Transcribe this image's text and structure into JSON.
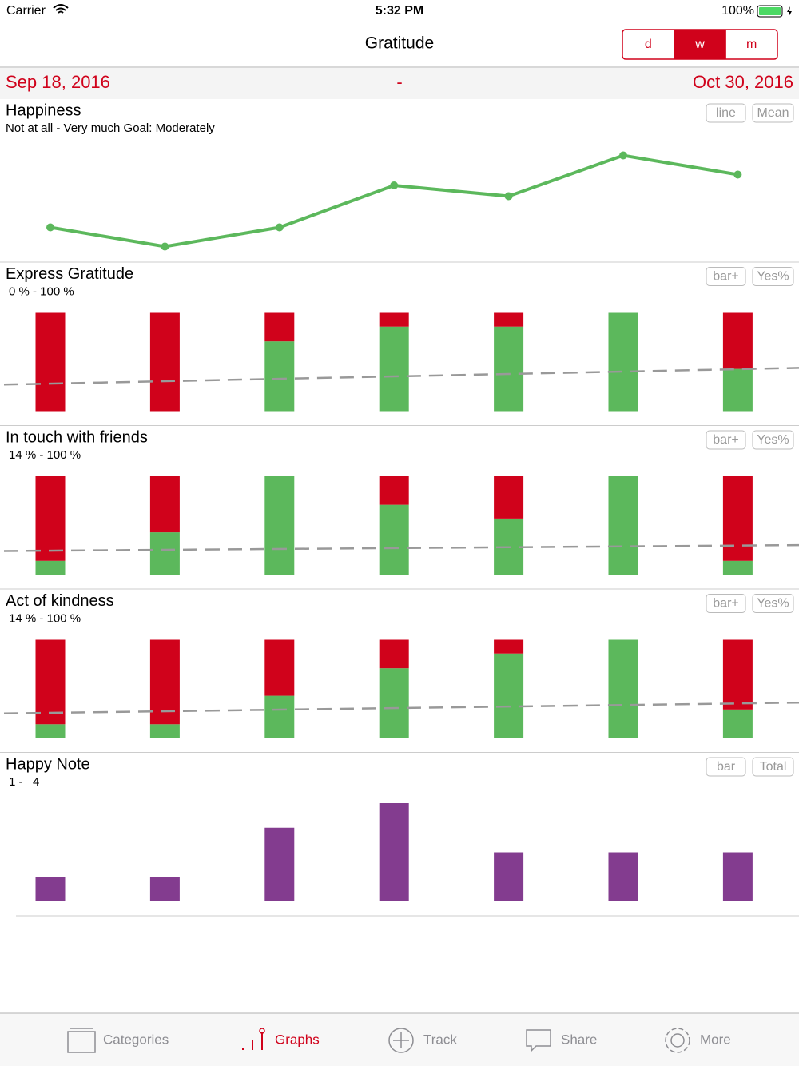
{
  "status_bar": {
    "carrier": "Carrier",
    "time": "5:32 PM",
    "battery": "100%"
  },
  "nav": {
    "title": "Gratitude",
    "segments": [
      "d",
      "w",
      "m"
    ],
    "selected": 1
  },
  "date_range": {
    "start": "Sep 18, 2016",
    "separator": "-",
    "end": "Oct 30, 2016"
  },
  "chart_data": [
    {
      "type": "line",
      "title": "Happiness",
      "subtitle": "Not at all - Very much Goal: Moderately",
      "buttons": [
        "line",
        "Mean"
      ],
      "values": [
        27,
        11,
        27,
        62,
        53,
        87,
        71
      ],
      "ylim": [
        0,
        100
      ],
      "color": "#5cb85c"
    },
    {
      "type": "stacked_bar",
      "title": "Express Gratitude",
      "subtitle": "0 % - 100 %",
      "buttons": [
        "bar+",
        "Yes%"
      ],
      "ylim": [
        0,
        100
      ],
      "series": [
        {
          "color": "#5cb85c",
          "values": [
            0,
            0,
            71,
            86,
            86,
            100,
            43
          ]
        },
        {
          "color": "#d0021b",
          "values": [
            100,
            100,
            29,
            14,
            14,
            0,
            57
          ]
        }
      ],
      "trend": [
        27,
        44
      ]
    },
    {
      "type": "stacked_bar",
      "title": "In touch with friends",
      "subtitle": "14 % - 100 %",
      "buttons": [
        "bar+",
        "Yes%"
      ],
      "ylim": [
        0,
        100
      ],
      "series": [
        {
          "color": "#5cb85c",
          "values": [
            14,
            43,
            100,
            71,
            57,
            100,
            14
          ]
        },
        {
          "color": "#d0021b",
          "values": [
            86,
            57,
            0,
            29,
            43,
            0,
            86
          ]
        }
      ],
      "trend": [
        24,
        30
      ]
    },
    {
      "type": "stacked_bar",
      "title": "Act of kindness",
      "subtitle": "14 % - 100 %",
      "buttons": [
        "bar+",
        "Yes%"
      ],
      "ylim": [
        0,
        100
      ],
      "series": [
        {
          "color": "#5cb85c",
          "values": [
            14,
            14,
            43,
            71,
            86,
            100,
            29
          ]
        },
        {
          "color": "#d0021b",
          "values": [
            86,
            86,
            57,
            29,
            14,
            0,
            71
          ]
        }
      ],
      "trend": [
        25,
        36
      ]
    },
    {
      "type": "bar",
      "title": "Happy Note",
      "subtitle": "1 -   4",
      "buttons": [
        "bar",
        "Total"
      ],
      "ylim": [
        0,
        4
      ],
      "values": [
        1,
        1,
        3,
        4,
        2,
        2,
        2
      ],
      "color": "#833c8f"
    }
  ],
  "tabs": [
    "Categories",
    "Graphs",
    "Track",
    "Share",
    "More"
  ],
  "selected_tab": 1
}
